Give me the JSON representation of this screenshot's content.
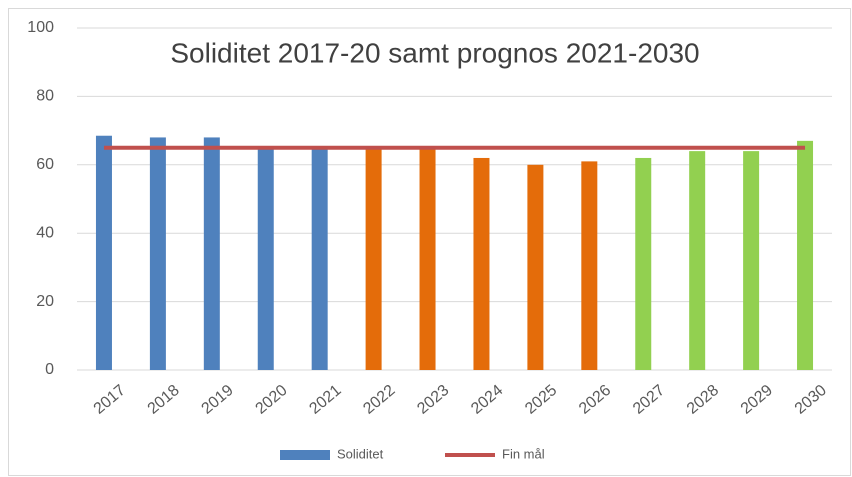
{
  "chart_data": {
    "type": "bar",
    "title": "Soliditet 2017-20 samt prognos 2021-2030",
    "categories": [
      "2017",
      "2018",
      "2019",
      "2020",
      "2021",
      "2022",
      "2023",
      "2024",
      "2025",
      "2026",
      "2027",
      "2028",
      "2029",
      "2030"
    ],
    "series": [
      {
        "name": "Soliditet",
        "color": "#4f81bd",
        "values": [
          68.5,
          68,
          68,
          65,
          65,
          65,
          65,
          62,
          60,
          61,
          62,
          64,
          64,
          67
        ],
        "colors": [
          "#4f81bd",
          "#4f81bd",
          "#4f81bd",
          "#4f81bd",
          "#4f81bd",
          "#e46c0a",
          "#e46c0a",
          "#e46c0a",
          "#e46c0a",
          "#e46c0a",
          "#92d050",
          "#92d050",
          "#92d050",
          "#92d050"
        ]
      },
      {
        "name": "Fin mål",
        "type": "line",
        "color": "#c0504d",
        "values": [
          65,
          65,
          65,
          65,
          65,
          65,
          65,
          65,
          65,
          65,
          65,
          65,
          65,
          65
        ]
      }
    ],
    "ylim": [
      0,
      100
    ],
    "yticks": [
      0,
      20,
      40,
      60,
      80,
      100
    ],
    "grid": true,
    "legend": "bottom"
  }
}
